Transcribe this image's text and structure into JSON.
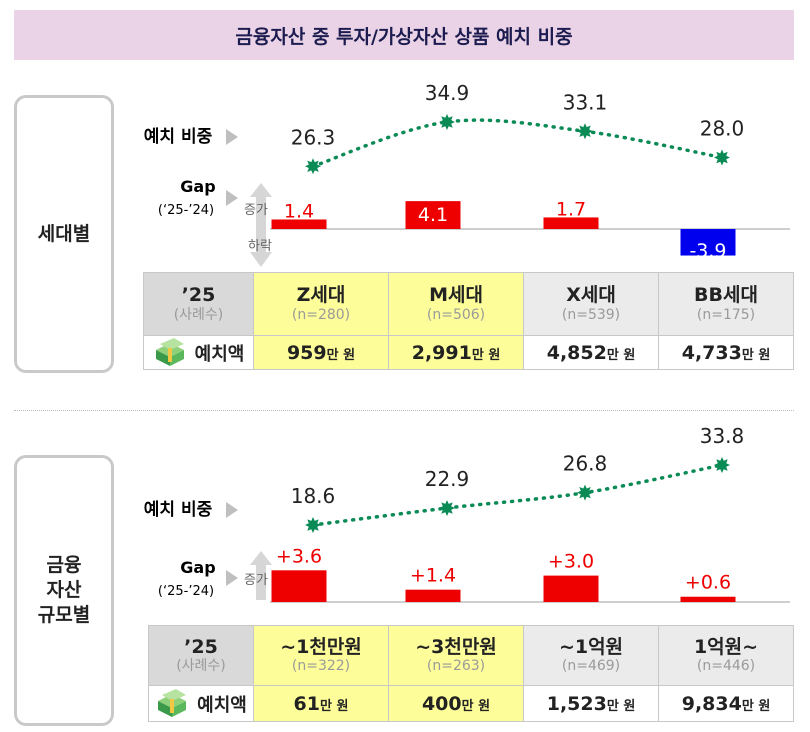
{
  "title": "금융자산 중 투자/가상자산 상품 예치 비중",
  "labels": {
    "share": "예치 비중",
    "gap": "Gap",
    "gap_sub": "(‘25-’24)",
    "increase": "증가",
    "decrease": "하락",
    "year": "’25",
    "cases": "(사례수)",
    "amount": "예치액",
    "unit": "만 원"
  },
  "sections": {
    "generation": {
      "label_lines": [
        "세대별"
      ]
    },
    "asset": {
      "label_lines": [
        "금융",
        "자산",
        "규모별"
      ]
    }
  },
  "colors": {
    "increase": "#ee0000",
    "decrease": "#0000ee",
    "line": "#0a8a55",
    "highlight": "#fdfd9a",
    "header_gray": "#d9d9d9"
  },
  "chart_data": [
    {
      "type": "line+bar",
      "categories": [
        "Z세대",
        "M세대",
        "X세대",
        "BB세대"
      ],
      "sample_sizes": [
        "(n=280)",
        "(n=506)",
        "(n=539)",
        "(n=175)"
      ],
      "highlighted": [
        true,
        true,
        false,
        false
      ],
      "share_values": [
        26.3,
        34.9,
        33.1,
        28.0
      ],
      "share_labels": [
        "26.3",
        "34.9",
        "33.1",
        "28.0"
      ],
      "gap_values": [
        1.4,
        4.1,
        1.7,
        -3.9
      ],
      "gap_labels": [
        "1.4",
        "4.1",
        "1.7",
        "-3.9"
      ],
      "amount_values": [
        "959",
        "2,991",
        "4,852",
        "4,733"
      ]
    },
    {
      "type": "line+bar",
      "categories": [
        "~1천만원",
        "~3천만원",
        "~1억원",
        "1억원~"
      ],
      "sample_sizes": [
        "(n=322)",
        "(n=263)",
        "(n=469)",
        "(n=446)"
      ],
      "highlighted": [
        true,
        true,
        false,
        false
      ],
      "share_values": [
        18.6,
        22.9,
        26.8,
        33.8
      ],
      "share_labels": [
        "18.6",
        "22.9",
        "26.8",
        "33.8"
      ],
      "gap_values": [
        3.6,
        1.4,
        3.0,
        0.6
      ],
      "gap_labels": [
        "+3.6",
        "+1.4",
        "+3.0",
        "+0.6"
      ],
      "amount_values": [
        "61",
        "400",
        "1,523",
        "9,834"
      ]
    }
  ]
}
